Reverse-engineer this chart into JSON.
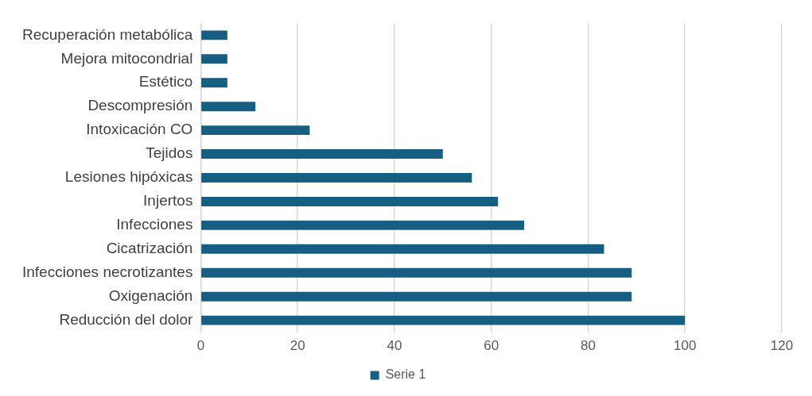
{
  "chart_data": {
    "type": "bar",
    "orientation": "horizontal",
    "categories": [
      "Recuperación metabólica",
      "Mejora mitocondrial",
      "Estético",
      "Descompresión",
      "Intoxicación CO",
      "Tejidos",
      "Lesiones hipóxicas",
      "Injertos",
      "Infecciones",
      "Cicatrización",
      "Infecciones necrotizantes",
      "Oxigenación",
      "Reducción del dolor"
    ],
    "series": [
      {
        "name": "Serie 1",
        "color": "#175f82",
        "values": [
          5.5,
          5.5,
          5.5,
          11.3,
          22.5,
          50,
          56,
          61.4,
          66.8,
          83.3,
          89,
          89,
          100
        ]
      }
    ],
    "xlim": [
      0,
      120
    ],
    "xticks": [
      0,
      20,
      40,
      60,
      80,
      100,
      120
    ],
    "grid": "x",
    "legend": "bottom"
  }
}
